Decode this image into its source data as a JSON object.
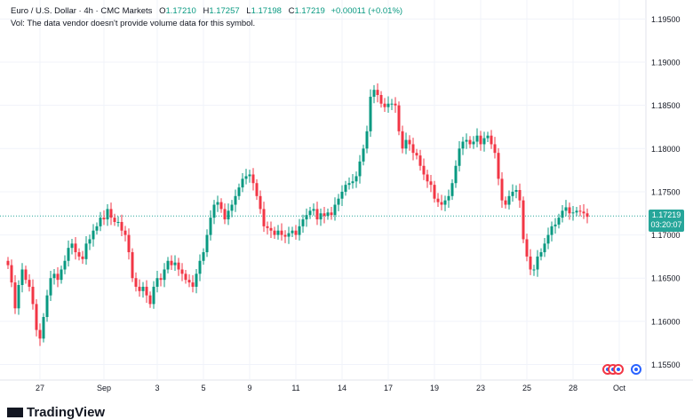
{
  "legend": {
    "symbol": "Euro / U.S. Dollar · 4h · CMC Markets",
    "o_label": "O",
    "o_value": "1.17210",
    "h_label": "H",
    "h_value": "1.17257",
    "l_label": "L",
    "l_value": "1.17198",
    "c_label": "C",
    "c_value": "1.17219",
    "change": "+0.00011 (+0.01%)"
  },
  "volume_note": "Vol: The data vendor doesn't provide volume data for this symbol.",
  "price_tag": {
    "price": "1.17219",
    "countdown": "03:20:07"
  },
  "logo": {
    "text": "TradingView"
  },
  "colors": {
    "up": "#089981",
    "down": "#f23645",
    "grid": "#f0f3fa",
    "text": "#131722",
    "current_line": "#26a69a"
  },
  "chart_data": {
    "type": "candlestick",
    "interval": "4h",
    "y_ticks": [
      "1.19500",
      "1.19000",
      "1.18500",
      "1.18000",
      "1.17500",
      "1.17000",
      "1.16500",
      "1.16000",
      "1.15500"
    ],
    "ylim": [
      1.1532,
      1.1972
    ],
    "x_ticks": [
      {
        "label": "27",
        "bar": 9
      },
      {
        "label": "Sep",
        "bar": 27
      },
      {
        "label": "3",
        "bar": 42
      },
      {
        "label": "5",
        "bar": 55
      },
      {
        "label": "9",
        "bar": 68
      },
      {
        "label": "11",
        "bar": 81
      },
      {
        "label": "14",
        "bar": 94
      },
      {
        "label": "17",
        "bar": 107
      },
      {
        "label": "19",
        "bar": 120
      },
      {
        "label": "23",
        "bar": 133
      },
      {
        "label": "25",
        "bar": 146
      },
      {
        "label": "28",
        "bar": 159
      },
      {
        "label": "Oct",
        "bar": 172
      }
    ],
    "current_price": 1.17219,
    "series": [
      {
        "values": [
          1.1665,
          1.1645,
          1.1615,
          1.1642,
          1.166,
          1.1648,
          1.164,
          1.162,
          1.159,
          1.158,
          1.1605,
          1.163,
          1.165,
          1.1655,
          1.1648,
          1.166,
          1.167,
          1.1685,
          1.169,
          1.168,
          1.1675,
          1.1672,
          1.169,
          1.1695,
          1.1705,
          1.171,
          1.172,
          1.1718,
          1.173,
          1.172,
          1.1715,
          1.1715,
          1.1705,
          1.17,
          1.168,
          1.165,
          1.164,
          1.1635,
          1.164,
          1.163,
          1.162,
          1.164,
          1.165,
          1.1648,
          1.166,
          1.167,
          1.1665,
          1.1668,
          1.166,
          1.1655,
          1.1648,
          1.1645,
          1.164,
          1.1655,
          1.167,
          1.168,
          1.17,
          1.172,
          1.1735,
          1.1738,
          1.173,
          1.1718,
          1.1728,
          1.1735,
          1.1745,
          1.1755,
          1.1765,
          1.1768,
          1.177,
          1.176,
          1.1745,
          1.173,
          1.171,
          1.1708,
          1.1705,
          1.17,
          1.1705,
          1.17,
          1.1698,
          1.1702,
          1.1705,
          1.17,
          1.171,
          1.1718,
          1.1723,
          1.1728,
          1.173,
          1.1718,
          1.1725,
          1.1722,
          1.1726,
          1.1723,
          1.1735,
          1.1742,
          1.175,
          1.1758,
          1.176,
          1.1762,
          1.1768,
          1.1785,
          1.18,
          1.182,
          1.186,
          1.1868,
          1.1862,
          1.1852,
          1.1848,
          1.1852,
          1.1852,
          1.185,
          1.182,
          1.18,
          1.181,
          1.1805,
          1.1795,
          1.1792,
          1.178,
          1.177,
          1.1762,
          1.1758,
          1.1742,
          1.1738,
          1.1735,
          1.174,
          1.1745,
          1.176,
          1.178,
          1.18,
          1.1808,
          1.181,
          1.1805,
          1.1808,
          1.1815,
          1.1805,
          1.1812,
          1.1815,
          1.1805,
          1.1795,
          1.1765,
          1.174,
          1.1735,
          1.1745,
          1.175,
          1.1752,
          1.174,
          1.1695,
          1.1675,
          1.166,
          1.166,
          1.1675,
          1.168,
          1.169,
          1.17,
          1.171,
          1.1712,
          1.172,
          1.1728,
          1.1732,
          1.1725,
          1.1726,
          1.1728,
          1.1727,
          1.1725,
          1.1721
        ]
      }
    ]
  }
}
